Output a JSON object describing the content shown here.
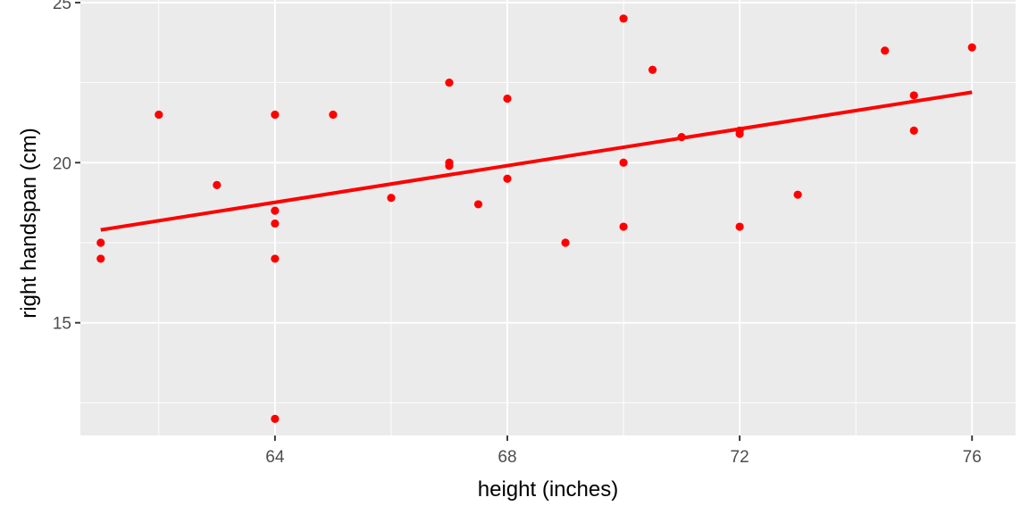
{
  "chart_data": {
    "type": "scatter",
    "title": "",
    "xlabel": "height (inches)",
    "ylabel": "right handspan (cm)",
    "xlim": [
      60.65,
      76.75
    ],
    "ylim": [
      11.48,
      25.08
    ],
    "x_ticks": [
      64,
      68,
      72,
      76
    ],
    "y_ticks": [
      15,
      20,
      25
    ],
    "grid": true,
    "background_color": "#ebebeb",
    "grid_color": "#ffffff",
    "point_color": "#ff0000",
    "line_color": "#ff0000",
    "points": [
      {
        "x": 61,
        "y": 17.5
      },
      {
        "x": 61,
        "y": 17.0
      },
      {
        "x": 62,
        "y": 21.5
      },
      {
        "x": 63,
        "y": 19.3
      },
      {
        "x": 64,
        "y": 21.5
      },
      {
        "x": 64,
        "y": 18.5
      },
      {
        "x": 64,
        "y": 18.1
      },
      {
        "x": 64,
        "y": 17.0
      },
      {
        "x": 64,
        "y": 12.0
      },
      {
        "x": 65,
        "y": 21.5
      },
      {
        "x": 66,
        "y": 18.9
      },
      {
        "x": 67,
        "y": 22.5
      },
      {
        "x": 67,
        "y": 20.0
      },
      {
        "x": 67,
        "y": 19.9
      },
      {
        "x": 67.5,
        "y": 18.7
      },
      {
        "x": 68,
        "y": 22.0
      },
      {
        "x": 68,
        "y": 19.5
      },
      {
        "x": 69,
        "y": 17.5
      },
      {
        "x": 70,
        "y": 24.5
      },
      {
        "x": 70,
        "y": 20.0
      },
      {
        "x": 70,
        "y": 18.0
      },
      {
        "x": 70.5,
        "y": 22.9
      },
      {
        "x": 71,
        "y": 20.8
      },
      {
        "x": 72,
        "y": 21.0
      },
      {
        "x": 72,
        "y": 20.9
      },
      {
        "x": 72,
        "y": 18.0
      },
      {
        "x": 73,
        "y": 19.0
      },
      {
        "x": 74.5,
        "y": 23.5
      },
      {
        "x": 75,
        "y": 22.1
      },
      {
        "x": 75,
        "y": 21.0
      },
      {
        "x": 76,
        "y": 23.6
      }
    ],
    "fit_line": {
      "x": [
        61,
        76
      ],
      "y": [
        17.9,
        22.2
      ]
    }
  }
}
